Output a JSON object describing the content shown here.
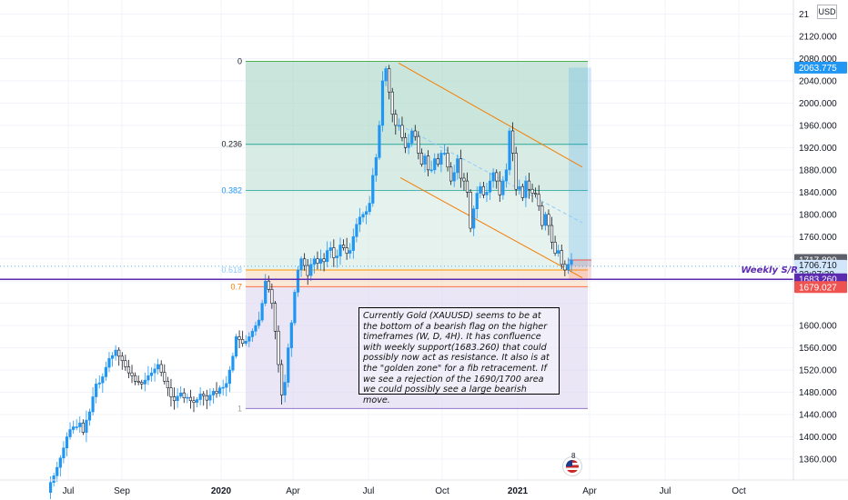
{
  "chart_data": {
    "type": "candlestick",
    "symbol": "XAUUSD",
    "currency_label": "USD",
    "y_axis": {
      "min": 1320,
      "max": 2180,
      "ticks": [
        "2120.000",
        "2080.000",
        "2040.000",
        "2000.000",
        "1960.000",
        "1920.000",
        "1880.000",
        "1840.000",
        "1800.000",
        "1760.000",
        "1600.000",
        "1560.000",
        "1520.000",
        "1480.000",
        "1440.000",
        "1400.000",
        "1360.000"
      ],
      "top_partial_tick": "21"
    },
    "x_axis": {
      "ticks": [
        "Jul",
        "Sep",
        "2020",
        "Apr",
        "Jul",
        "Oct",
        "2021",
        "Apr",
        "Jul",
        "Oct"
      ]
    },
    "price_badges": [
      {
        "value": 2063.775,
        "label": "2063.775",
        "color": "#2196f3"
      },
      {
        "value": 1717.89,
        "label": "1717.890",
        "color": "#5d606b"
      },
      {
        "value": 1706.71,
        "label": "1706.710",
        "sublabel": "22:07:20",
        "color": "#d1e6fb",
        "text_color": "#131722"
      },
      {
        "value": 1683.26,
        "label": "1683.260",
        "color": "#5b2ab1"
      },
      {
        "value": 1679.027,
        "label": "1679.027",
        "color": "#ef5350"
      }
    ],
    "fib_levels": [
      {
        "ratio": "0",
        "price": 2075
      },
      {
        "ratio": "0.236",
        "price": 1926
      },
      {
        "ratio": "0.382",
        "price": 1843
      },
      {
        "ratio": "0.618",
        "price": 1700
      },
      {
        "ratio": "0.7",
        "price": 1670
      },
      {
        "ratio": "1",
        "price": 1451
      }
    ],
    "support_resistance": {
      "label": "Weekly S/R",
      "price": 1683.26
    },
    "annotation": "Currently Gold (XAUUSD) seems to be at the bottom of a bearish flag on the higher timeframes (W, D, 4H). It has confluence with weekly support(1683.260) that could possibly now act as resistance. It also is at the \"golden zone\" for a fib retracement. If we see a rejection of the 1690/1700 area we could possibly see a large bearish move.",
    "events_badge": "8",
    "series_close": [
      1300,
      1318,
      1330,
      1345,
      1362,
      1380,
      1400,
      1413,
      1418,
      1418,
      1425,
      1408,
      1430,
      1445,
      1472,
      1495,
      1497,
      1508,
      1525,
      1541,
      1546,
      1556,
      1545,
      1537,
      1526,
      1515,
      1510,
      1500,
      1498,
      1495,
      1502,
      1510,
      1515,
      1522,
      1530,
      1516,
      1500,
      1488,
      1472,
      1465,
      1473,
      1479,
      1470,
      1471,
      1465,
      1462,
      1467,
      1477,
      1474,
      1466,
      1475,
      1482,
      1478,
      1488,
      1489,
      1496,
      1520,
      1545,
      1580,
      1575,
      1568,
      1572,
      1580,
      1590,
      1600,
      1610,
      1640,
      1680,
      1665,
      1640,
      1590,
      1530,
      1475,
      1498,
      1560,
      1605,
      1660,
      1700,
      1720,
      1708,
      1690,
      1710,
      1720,
      1712,
      1720,
      1715,
      1735,
      1740,
      1722,
      1725,
      1745,
      1740,
      1730,
      1735,
      1760,
      1782,
      1795,
      1800,
      1805,
      1820,
      1870,
      1902,
      1960,
      2040,
      2062,
      2020,
      1980,
      1960,
      1960,
      1938,
      1920,
      1928,
      1950,
      1940,
      1910,
      1890,
      1905,
      1880,
      1880,
      1900,
      1890,
      1910,
      1910,
      1885,
      1860,
      1875,
      1900,
      1865,
      1860,
      1840,
      1775,
      1810,
      1838,
      1850,
      1835,
      1840,
      1860,
      1875,
      1860,
      1835,
      1860,
      1880,
      1950,
      1910,
      1845,
      1850,
      1830,
      1860,
      1845,
      1838,
      1836,
      1815,
      1780,
      1800,
      1780,
      1750,
      1730,
      1735,
      1710,
      1700,
      1710,
      1718
    ]
  }
}
